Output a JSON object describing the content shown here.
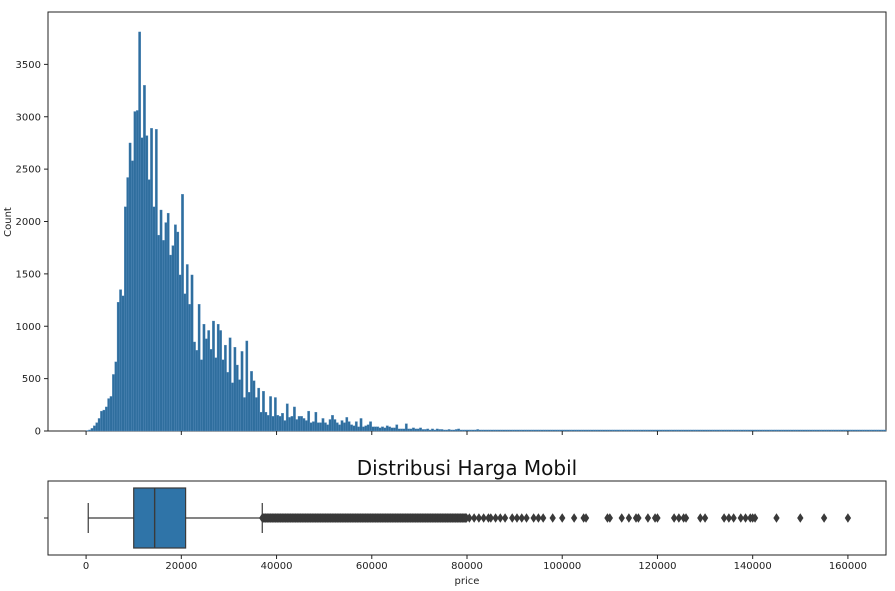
{
  "colors": {
    "bar_fill": "#2F6E9E",
    "bar_edge": "#5A8FBF",
    "box_fill": "#2F74A8",
    "box_edge": "#3a3a3a",
    "outlier": "#3a3a3a"
  },
  "chart_data": [
    {
      "type": "bar",
      "chart_kind": "histogram",
      "title": "",
      "xlabel": "",
      "ylabel": "Count",
      "xlim": [
        -8000,
        168000
      ],
      "ylim": [
        0,
        4000
      ],
      "x_ticks": [
        0,
        20000,
        40000,
        60000,
        80000,
        100000,
        120000,
        140000,
        160000
      ],
      "y_ticks": [
        0,
        500,
        1000,
        1500,
        2000,
        2500,
        3000,
        3500
      ],
      "y_tick_labels": [
        "0",
        "500",
        "1000",
        "1500",
        "2000",
        "2500",
        "3000",
        "3500"
      ],
      "bin_start": 0,
      "bin_width": 500,
      "values": [
        5,
        10,
        25,
        50,
        80,
        120,
        190,
        200,
        230,
        310,
        330,
        540,
        660,
        1230,
        1350,
        1290,
        2140,
        2420,
        2750,
        2580,
        3050,
        3060,
        3810,
        2800,
        3300,
        2820,
        2400,
        2890,
        2140,
        2880,
        1870,
        2110,
        1820,
        1990,
        2080,
        1680,
        1770,
        1970,
        1900,
        1490,
        2260,
        1310,
        1590,
        1210,
        1490,
        850,
        770,
        1210,
        680,
        1020,
        880,
        960,
        780,
        1050,
        700,
        1020,
        960,
        680,
        820,
        560,
        890,
        460,
        800,
        630,
        490,
        760,
        320,
        860,
        370,
        570,
        480,
        320,
        410,
        180,
        380,
        180,
        150,
        330,
        140,
        320,
        150,
        140,
        170,
        100,
        260,
        130,
        140,
        230,
        110,
        140,
        140,
        120,
        100,
        190,
        80,
        90,
        180,
        80,
        80,
        120,
        80,
        60,
        110,
        150,
        110,
        80,
        60,
        100,
        80,
        130,
        90,
        60,
        50,
        90,
        40,
        120,
        40,
        50,
        60,
        90,
        40,
        40,
        40,
        30,
        40,
        30,
        50,
        40,
        30,
        30,
        60,
        20,
        20,
        20,
        70,
        20,
        20,
        30,
        20,
        20,
        30,
        15,
        15,
        20,
        10,
        20,
        10,
        20,
        15,
        15,
        10,
        10,
        15,
        10,
        10,
        15,
        20,
        10,
        10,
        10,
        10,
        10,
        10,
        10,
        15,
        10,
        10,
        10,
        10,
        10,
        10,
        10,
        10,
        10,
        10,
        10,
        10,
        10,
        10,
        10,
        10,
        10,
        10,
        10,
        10,
        10,
        10,
        10,
        10,
        10,
        10,
        10,
        10,
        10,
        10,
        10,
        10,
        10,
        10,
        10,
        10,
        10,
        10,
        10,
        10,
        10,
        10,
        10,
        10,
        10,
        10,
        10,
        10,
        10,
        10,
        10,
        10,
        10,
        10,
        10,
        10,
        10,
        10,
        10,
        10,
        10,
        10,
        10,
        10,
        10,
        10,
        10,
        10,
        10,
        10,
        10,
        10,
        10,
        10,
        10,
        10,
        10,
        10,
        10,
        10,
        10,
        10,
        10,
        10,
        10,
        10,
        10,
        10,
        10,
        10,
        10,
        10,
        10,
        10,
        10,
        10,
        10,
        10,
        10,
        10,
        10,
        10,
        10,
        10,
        10,
        10,
        10,
        10,
        10,
        10,
        10,
        10,
        10,
        10,
        10,
        10,
        10,
        10,
        10,
        10,
        10,
        10,
        10,
        10,
        10,
        10,
        10,
        10,
        10,
        10,
        10,
        10,
        10,
        10,
        10,
        10,
        10,
        10,
        10,
        10,
        10,
        10,
        10,
        10,
        10,
        10,
        10,
        10,
        10,
        10,
        10,
        10,
        10,
        10,
        10,
        10,
        10,
        10,
        10,
        10,
        10,
        10,
        10,
        10,
        10,
        10,
        10,
        10,
        10,
        10,
        10
      ]
    },
    {
      "type": "boxplot",
      "title": "Distribusi Harga Mobil",
      "xlabel": "price",
      "ylabel": "",
      "xlim": [
        -8000,
        168000
      ],
      "x_ticks": [
        0,
        20000,
        40000,
        60000,
        80000,
        100000,
        120000,
        140000,
        160000
      ],
      "x_tick_labels": [
        "0",
        "20000",
        "40000",
        "60000",
        "80000",
        "100000",
        "120000",
        "140000",
        "160000"
      ],
      "whisker_low": 450,
      "q1": 10000,
      "median": 14400,
      "q3": 20900,
      "whisker_high": 37000,
      "outlier_dense_range": [
        37000,
        80000
      ],
      "outliers": [
        80500,
        81500,
        82500,
        83500,
        84500,
        85000,
        86000,
        87000,
        88000,
        89500,
        90500,
        91500,
        92500,
        94000,
        95000,
        96000,
        98000,
        100000,
        102500,
        104500,
        105000,
        109500,
        110000,
        112500,
        114000,
        115500,
        116000,
        118000,
        119500,
        120000,
        123500,
        124500,
        125500,
        126000,
        129000,
        130000,
        134000,
        135000,
        136000,
        137500,
        138500,
        139500,
        140000,
        140500,
        145000,
        150000,
        155000,
        160000
      ]
    }
  ]
}
